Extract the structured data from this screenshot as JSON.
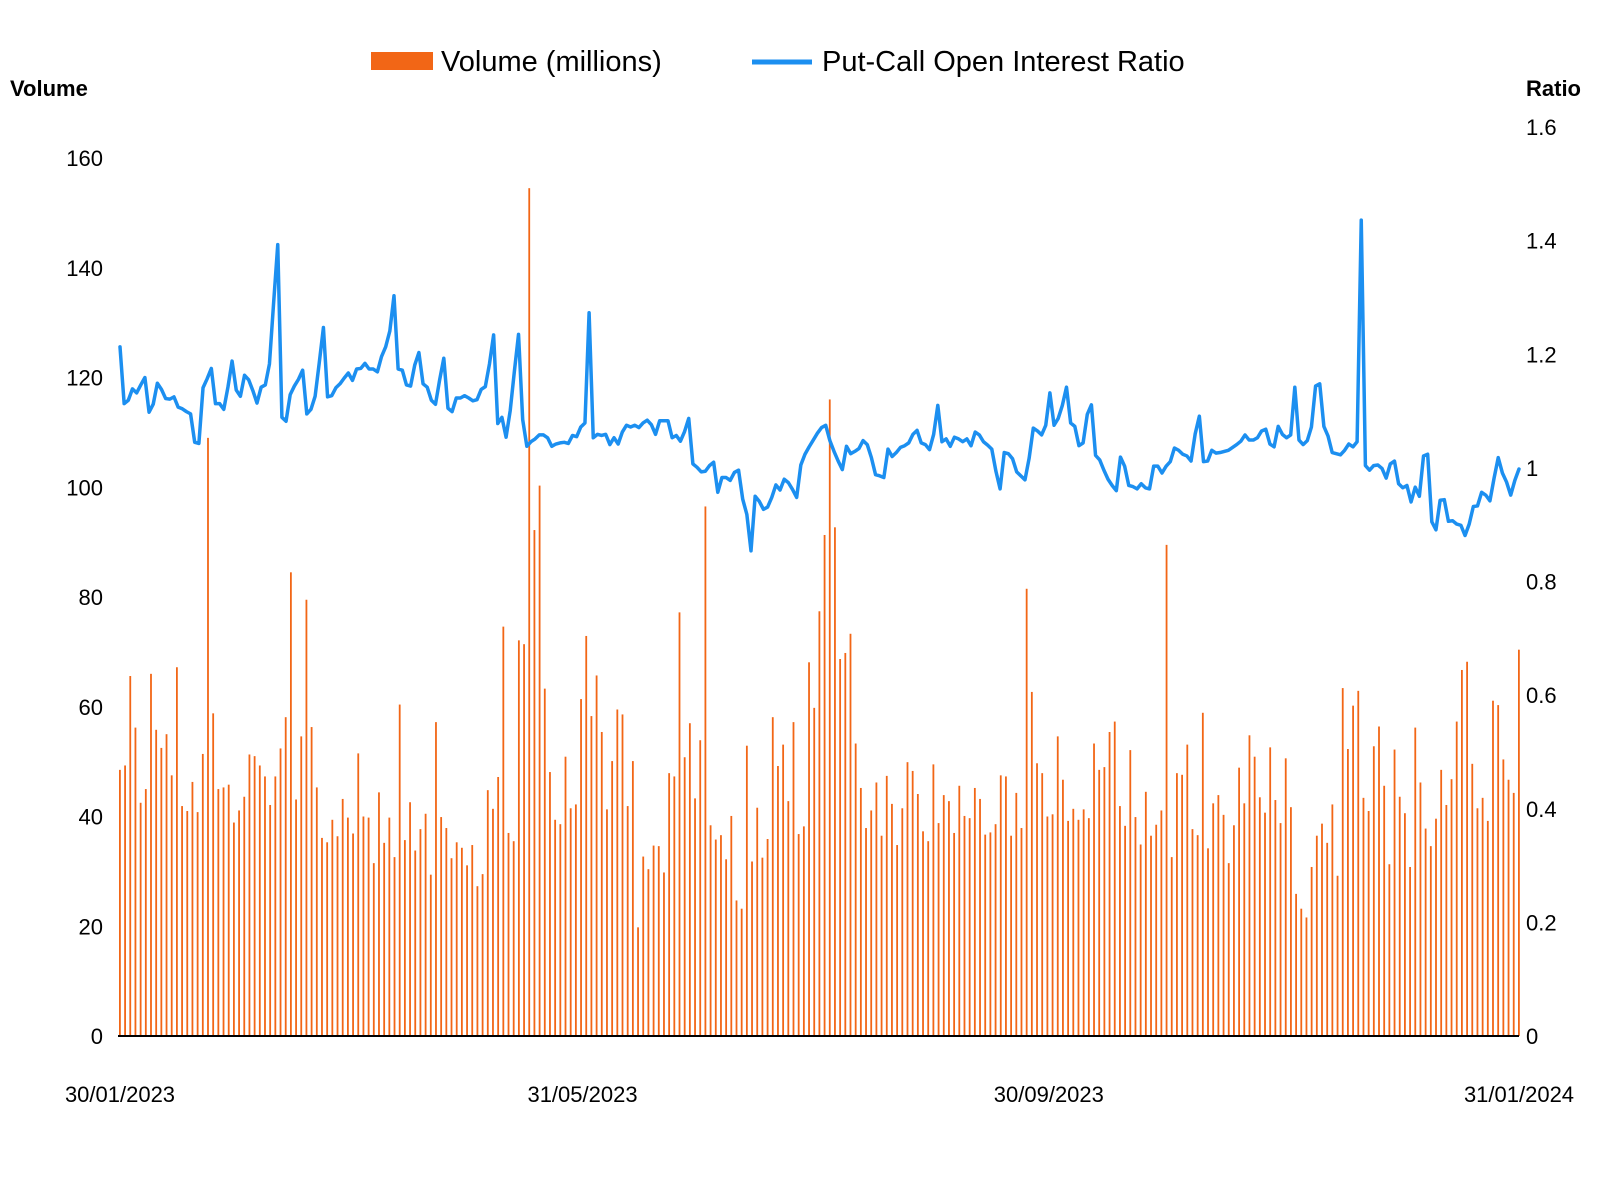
{
  "chart_data": {
    "type": "bar+line",
    "legend": [
      {
        "label": "Volume (millions)",
        "color": "#f26616",
        "kind": "bar"
      },
      {
        "label": "Put-Call Open Interest Ratio",
        "color": "#1c8ff0",
        "kind": "line"
      }
    ],
    "legend_position": "top-center",
    "left_axis": {
      "title": "Volume",
      "ticks": [
        "0",
        "20",
        "40",
        "60",
        "80",
        "100",
        "120",
        "140",
        "160"
      ],
      "range": [
        0,
        160
      ]
    },
    "right_axis": {
      "title": "Ratio",
      "ticks": [
        "0",
        "0.2",
        "0.4",
        "0.6",
        "0.8",
        "1",
        "1.2",
        "1.4",
        "1.6"
      ],
      "range": [
        0,
        1.6
      ]
    },
    "x_axis": {
      "type": "date",
      "ticks": [
        "30/01/2023",
        "31/05/2023",
        "30/09/2023",
        "31/01/2024"
      ],
      "range": [
        "2023-01-30",
        "2024-01-31"
      ]
    },
    "grid": false,
    "series": [
      {
        "name": "Volume (millions)",
        "axis": "left",
        "values": [
          48.5,
          49.3,
          65.6,
          56.2,
          42.5,
          45.0,
          66.0,
          55.8,
          52.5,
          55.0,
          47.5,
          67.2,
          41.9,
          41.0,
          46.3,
          40.8,
          51.4,
          109.0,
          58.8,
          45.0,
          45.3,
          45.8,
          38.9,
          41.1,
          43.6,
          51.3,
          51.0,
          49.3,
          47.3,
          42.1,
          47.3,
          52.4,
          58.1,
          84.5,
          43.1,
          54.6,
          79.5,
          56.3,
          45.3,
          36.1,
          35.3,
          39.4,
          36.4,
          43.2,
          39.8,
          36.9,
          51.5,
          40.0,
          39.8,
          31.5,
          44.4,
          35.2,
          39.8,
          32.6,
          60.4,
          35.7,
          42.6,
          33.8,
          37.7,
          40.5,
          29.4,
          57.2,
          39.9,
          37.9,
          32.4,
          35.3,
          34.3,
          31.1,
          34.8,
          27.3,
          29.5,
          44.8,
          41.4,
          47.2,
          74.6,
          37.0,
          35.5,
          72.1,
          71.4,
          154.5,
          92.2,
          100.3,
          63.3,
          48.1,
          39.4,
          38.6,
          50.9,
          41.5,
          42.2,
          61.4,
          72.9,
          58.3,
          65.7,
          55.4,
          41.3,
          50.1,
          59.5,
          58.6,
          41.9,
          50.1,
          19.8,
          32.7,
          30.4,
          34.7,
          34.6,
          29.8,
          47.9,
          47.3,
          77.2,
          50.8,
          57.0,
          43.3,
          53.9,
          96.5,
          38.4,
          35.8,
          36.6,
          32.2,
          40.1,
          24.7,
          23.2,
          52.9,
          31.8,
          41.6,
          32.5,
          35.9,
          58.1,
          49.2,
          53.1,
          42.8,
          57.2,
          36.8,
          38.2,
          68.1,
          59.8,
          77.4,
          91.3,
          116.0,
          92.7,
          68.7,
          69.8,
          73.3,
          53.3,
          45.2,
          37.9,
          41.1,
          46.2,
          36.5,
          47.4,
          42.3,
          34.8,
          41.5,
          49.9,
          48.3,
          44.1,
          37.3,
          35.5,
          49.5,
          38.8,
          43.9,
          42.8,
          37.0,
          45.6,
          40.1,
          39.7,
          45.2,
          43.2,
          36.7,
          37.1,
          38.6,
          47.5,
          47.3,
          36.5,
          44.3,
          37.9,
          81.5,
          62.7,
          49.7,
          47.9,
          40.0,
          40.4,
          54.6,
          46.7,
          39.2,
          41.4,
          39.4,
          41.3,
          39.7,
          53.3,
          48.5,
          49.0,
          55.4,
          57.3,
          41.9,
          38.3,
          52.1,
          39.9,
          34.9,
          44.5,
          36.5,
          38.5,
          41.1,
          89.5,
          32.6,
          47.9,
          47.6,
          53.1,
          37.7,
          36.6,
          58.9,
          34.2,
          42.4,
          43.9,
          40.3,
          31.5,
          38.4,
          48.9,
          42.4,
          54.8,
          50.9,
          43.5,
          40.7,
          52.6,
          43.0,
          38.8,
          50.6,
          41.7,
          25.9,
          23.2,
          21.6,
          30.8,
          36.5,
          38.7,
          35.2,
          42.2,
          29.2,
          63.4,
          52.3,
          60.2,
          62.9,
          43.4,
          41.0,
          52.8,
          56.4,
          45.6,
          31.3,
          52.2,
          43.6,
          40.6,
          30.8,
          56.2,
          46.2,
          37.8,
          34.6,
          39.6,
          48.5,
          42.1,
          46.8,
          57.3,
          66.7,
          68.2,
          49.6,
          41.5,
          43.4,
          39.2,
          61.1,
          60.3,
          50.4,
          46.7,
          44.3,
          70.4
        ],
        "values_note_missing": []
      },
      {
        "name": "Put-Call Open Interest Ratio",
        "axis": "right",
        "values": [
          1.213,
          1.113,
          1.119,
          1.139,
          1.132,
          1.146,
          1.159,
          1.098,
          1.112,
          1.149,
          1.138,
          1.122,
          1.121,
          1.125,
          1.107,
          1.104,
          1.099,
          1.095,
          1.045,
          1.043,
          1.141,
          1.157,
          1.175,
          1.113,
          1.113,
          1.103,
          1.142,
          1.188,
          1.137,
          1.126,
          1.163,
          1.155,
          1.136,
          1.114,
          1.142,
          1.146,
          1.183,
          1.29,
          1.393,
          1.089,
          1.082,
          1.129,
          1.144,
          1.156,
          1.172,
          1.095,
          1.103,
          1.126,
          1.185,
          1.247,
          1.125,
          1.127,
          1.141,
          1.148,
          1.158,
          1.167,
          1.154,
          1.174,
          1.175,
          1.184,
          1.174,
          1.174,
          1.169,
          1.196,
          1.213,
          1.241,
          1.303,
          1.174,
          1.172,
          1.146,
          1.144,
          1.181,
          1.203,
          1.148,
          1.142,
          1.119,
          1.112,
          1.155,
          1.193,
          1.105,
          1.099,
          1.123,
          1.123,
          1.127,
          1.123,
          1.118,
          1.12,
          1.138,
          1.143,
          1.183,
          1.234,
          1.078,
          1.089,
          1.054,
          1.101,
          1.17,
          1.235,
          1.085,
          1.038,
          1.046,
          1.051,
          1.058,
          1.058,
          1.053,
          1.038,
          1.042,
          1.044,
          1.045,
          1.043,
          1.057,
          1.055,
          1.072,
          1.079,
          1.273,
          1.053,
          1.059,
          1.057,
          1.059,
          1.041,
          1.053,
          1.042,
          1.063,
          1.075,
          1.072,
          1.075,
          1.071,
          1.079,
          1.084,
          1.076,
          1.059,
          1.083,
          1.083,
          1.083,
          1.053,
          1.057,
          1.047,
          1.064,
          1.087,
          1.007,
          1.001,
          0.993,
          0.994,
          1.004,
          1.01,
          0.957,
          0.983,
          0.983,
          0.978,
          0.992,
          0.996,
          0.945,
          0.918,
          0.854,
          0.95,
          0.941,
          0.927,
          0.931,
          0.948,
          0.97,
          0.961,
          0.98,
          0.974,
          0.962,
          0.948,
          1.005,
          1.024,
          1.037,
          1.049,
          1.061,
          1.071,
          1.075,
          1.048,
          1.029,
          1.012,
          0.997,
          1.038,
          1.025,
          1.029,
          1.034,
          1.048,
          1.041,
          1.018,
          0.988,
          0.986,
          0.983,
          1.033,
          1.02,
          1.027,
          1.036,
          1.039,
          1.044,
          1.059,
          1.066,
          1.044,
          1.041,
          1.032,
          1.059,
          1.11,
          1.046,
          1.051,
          1.038,
          1.054,
          1.051,
          1.046,
          1.051,
          1.039,
          1.063,
          1.058,
          1.046,
          1.04,
          1.033,
          0.994,
          0.963,
          1.027,
          1.025,
          1.016,
          0.993,
          0.986,
          0.979,
          1.017,
          1.07,
          1.065,
          1.058,
          1.075,
          1.132,
          1.075,
          1.087,
          1.11,
          1.142,
          1.079,
          1.073,
          1.039,
          1.044,
          1.094,
          1.111,
          1.022,
          1.014,
          0.996,
          0.98,
          0.969,
          0.96,
          1.019,
          1.003,
          0.969,
          0.967,
          0.963,
          0.972,
          0.965,
          0.963,
          1.003,
          1.003,
          0.991,
          1.003,
          1.011,
          1.035,
          1.031,
          1.024,
          1.021,
          1.012,
          1.06,
          1.091,
          1.011,
          1.012,
          1.031,
          1.026,
          1.027,
          1.029,
          1.031,
          1.036,
          1.041,
          1.047,
          1.058,
          1.049,
          1.049,
          1.053,
          1.065,
          1.068,
          1.042,
          1.037,
          1.073,
          1.059,
          1.053,
          1.058,
          1.142,
          1.049,
          1.041,
          1.048,
          1.072,
          1.144,
          1.148,
          1.073,
          1.056,
          1.027,
          1.025,
          1.023,
          1.031,
          1.042,
          1.037,
          1.046,
          1.436,
          1.004,
          0.996,
          1.004,
          1.005,
          0.999,
          0.982,
          1.007,
          1.012,
          0.972,
          0.965,
          0.969,
          0.94,
          0.966,
          0.95,
          1.021,
          1.024,
          0.905,
          0.891,
          0.943,
          0.944,
          0.906,
          0.907,
          0.901,
          0.899,
          0.881,
          0.901,
          0.932,
          0.933,
          0.957,
          0.952,
          0.942,
          0.982,
          1.018,
          0.991,
          0.975,
          0.952,
          0.978,
          0.998
        ]
      }
    ]
  }
}
